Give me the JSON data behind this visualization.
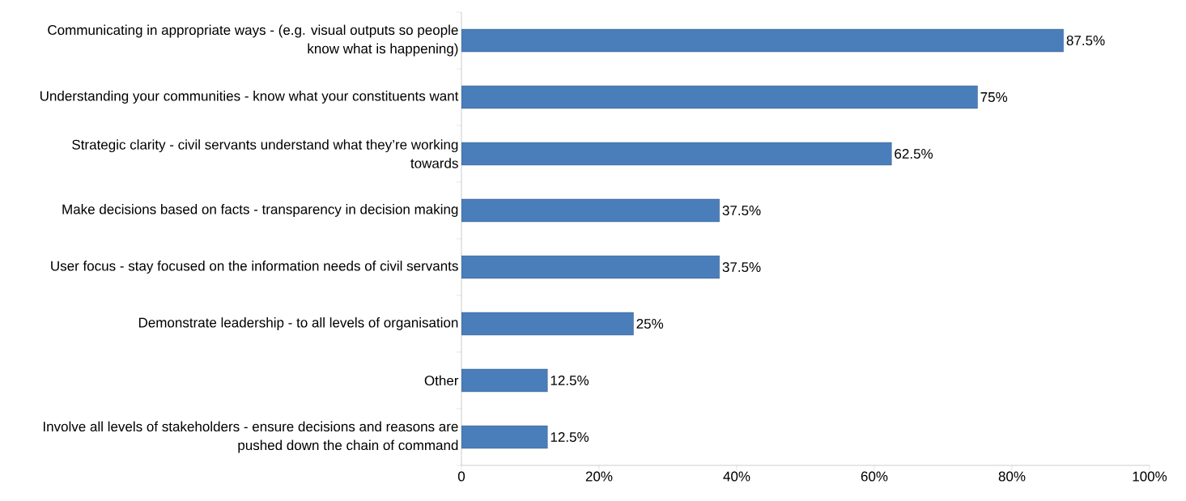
{
  "chart_data": {
    "type": "bar",
    "orientation": "horizontal",
    "categories": [
      "Communicating in appropriate ways - (e.g. visual outputs so people know what is happening)",
      "Understanding your communities - know what your constituents want",
      "Strategic clarity - civil servants understand what they’re working towards",
      "Make decisions based on facts - transparency in decision making",
      "User focus - stay focused on the information needs of civil servants",
      "Demonstrate leadership - to all levels of organisation",
      "Other",
      "Involve all levels of stakeholders - ensure decisions and reasons are pushed down the chain of command"
    ],
    "values": [
      87.5,
      75,
      62.5,
      37.5,
      37.5,
      25,
      12.5,
      12.5
    ],
    "value_labels": [
      "87.5%",
      "75%",
      "62.5%",
      "37.5%",
      "37.5%",
      "25%",
      "12.5%",
      "12.5%"
    ],
    "color": "#4a7ebb",
    "xlim": [
      0,
      100
    ],
    "xticks": [
      0,
      {
        "value": 20,
        "label": "20%"
      },
      {
        "value": 40,
        "label": "40%"
      },
      {
        "value": 60,
        "label": "60%"
      },
      {
        "value": 80,
        "label": "80%"
      },
      {
        "value": 100,
        "label": "100%"
      }
    ],
    "grid": false
  }
}
